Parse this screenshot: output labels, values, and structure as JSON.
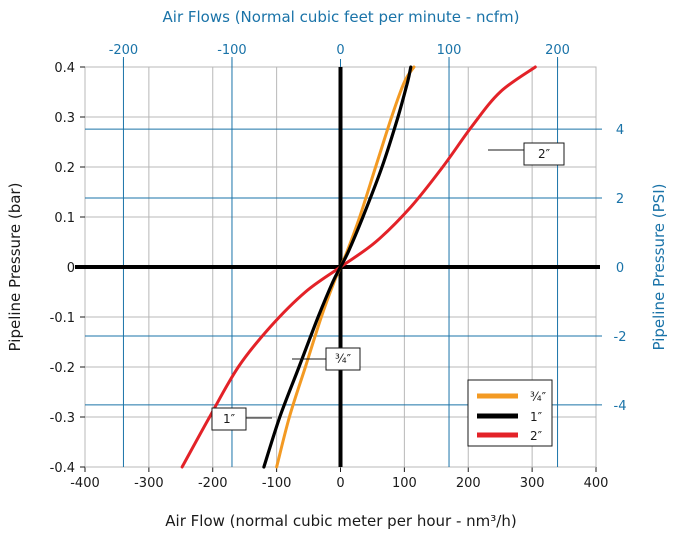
{
  "chart_data": {
    "type": "line",
    "colors": {
      "3/4": "#f39a23",
      "1": "#000000",
      "2": "#e32228",
      "secondary_axis": "#1a73a8"
    },
    "x_axis": {
      "label": "Air Flow (normal cubic meter per hour - nm³/h)",
      "range": [
        -400,
        400
      ],
      "ticks": [
        "-400",
        "-300",
        "-200",
        "-100",
        "0",
        "100",
        "200",
        "300",
        "400"
      ]
    },
    "y_axis": {
      "label": "Pipeline Pressure (bar)",
      "range": [
        -0.4,
        0.4
      ],
      "ticks": [
        "-0.4",
        "-0.3",
        "-0.2",
        "-0.1",
        "0",
        "0.1",
        "0.2",
        "0.3",
        "0.4"
      ]
    },
    "x2_axis": {
      "label": "Air Flows (Normal cubic feet per minute - ncfm)",
      "ticks": [
        "-200",
        "-100",
        "0",
        "100",
        "200"
      ]
    },
    "y2_axis": {
      "label": "Pipeline Pressure (PSI)",
      "ticks": [
        "4",
        "2",
        "0",
        "-2",
        "-4"
      ]
    },
    "series": [
      {
        "name": "¾″",
        "key": "3/4",
        "x": [
          -100,
          -80,
          -55,
          -30,
          -10,
          0,
          10,
          30,
          55,
          80,
          100,
          115
        ],
        "y": [
          -0.4,
          -0.3,
          -0.2,
          -0.1,
          -0.03,
          0,
          0.03,
          0.1,
          0.2,
          0.3,
          0.37,
          0.4
        ]
      },
      {
        "name": "1″",
        "key": "1",
        "x": [
          -120,
          -95,
          -65,
          -35,
          -12,
          0,
          12,
          35,
          65,
          90,
          105,
          110
        ],
        "y": [
          -0.4,
          -0.3,
          -0.2,
          -0.1,
          -0.03,
          0,
          0.03,
          0.1,
          0.2,
          0.3,
          0.37,
          0.4
        ]
      },
      {
        "name": "2″",
        "key": "2",
        "x": [
          -248,
          -205,
          -160,
          -110,
          -55,
          0,
          55,
          110,
          160,
          205,
          250,
          305
        ],
        "y": [
          -0.4,
          -0.3,
          -0.2,
          -0.12,
          -0.05,
          0,
          0.05,
          0.12,
          0.2,
          0.28,
          0.35,
          0.4
        ]
      }
    ],
    "callouts": [
      {
        "text": "2″"
      },
      {
        "text": "¾″"
      },
      {
        "text": "1″"
      }
    ],
    "legend": {
      "position": "bottom-right",
      "entries": [
        "¾″",
        "1″",
        "2″"
      ]
    },
    "grid": true
  }
}
